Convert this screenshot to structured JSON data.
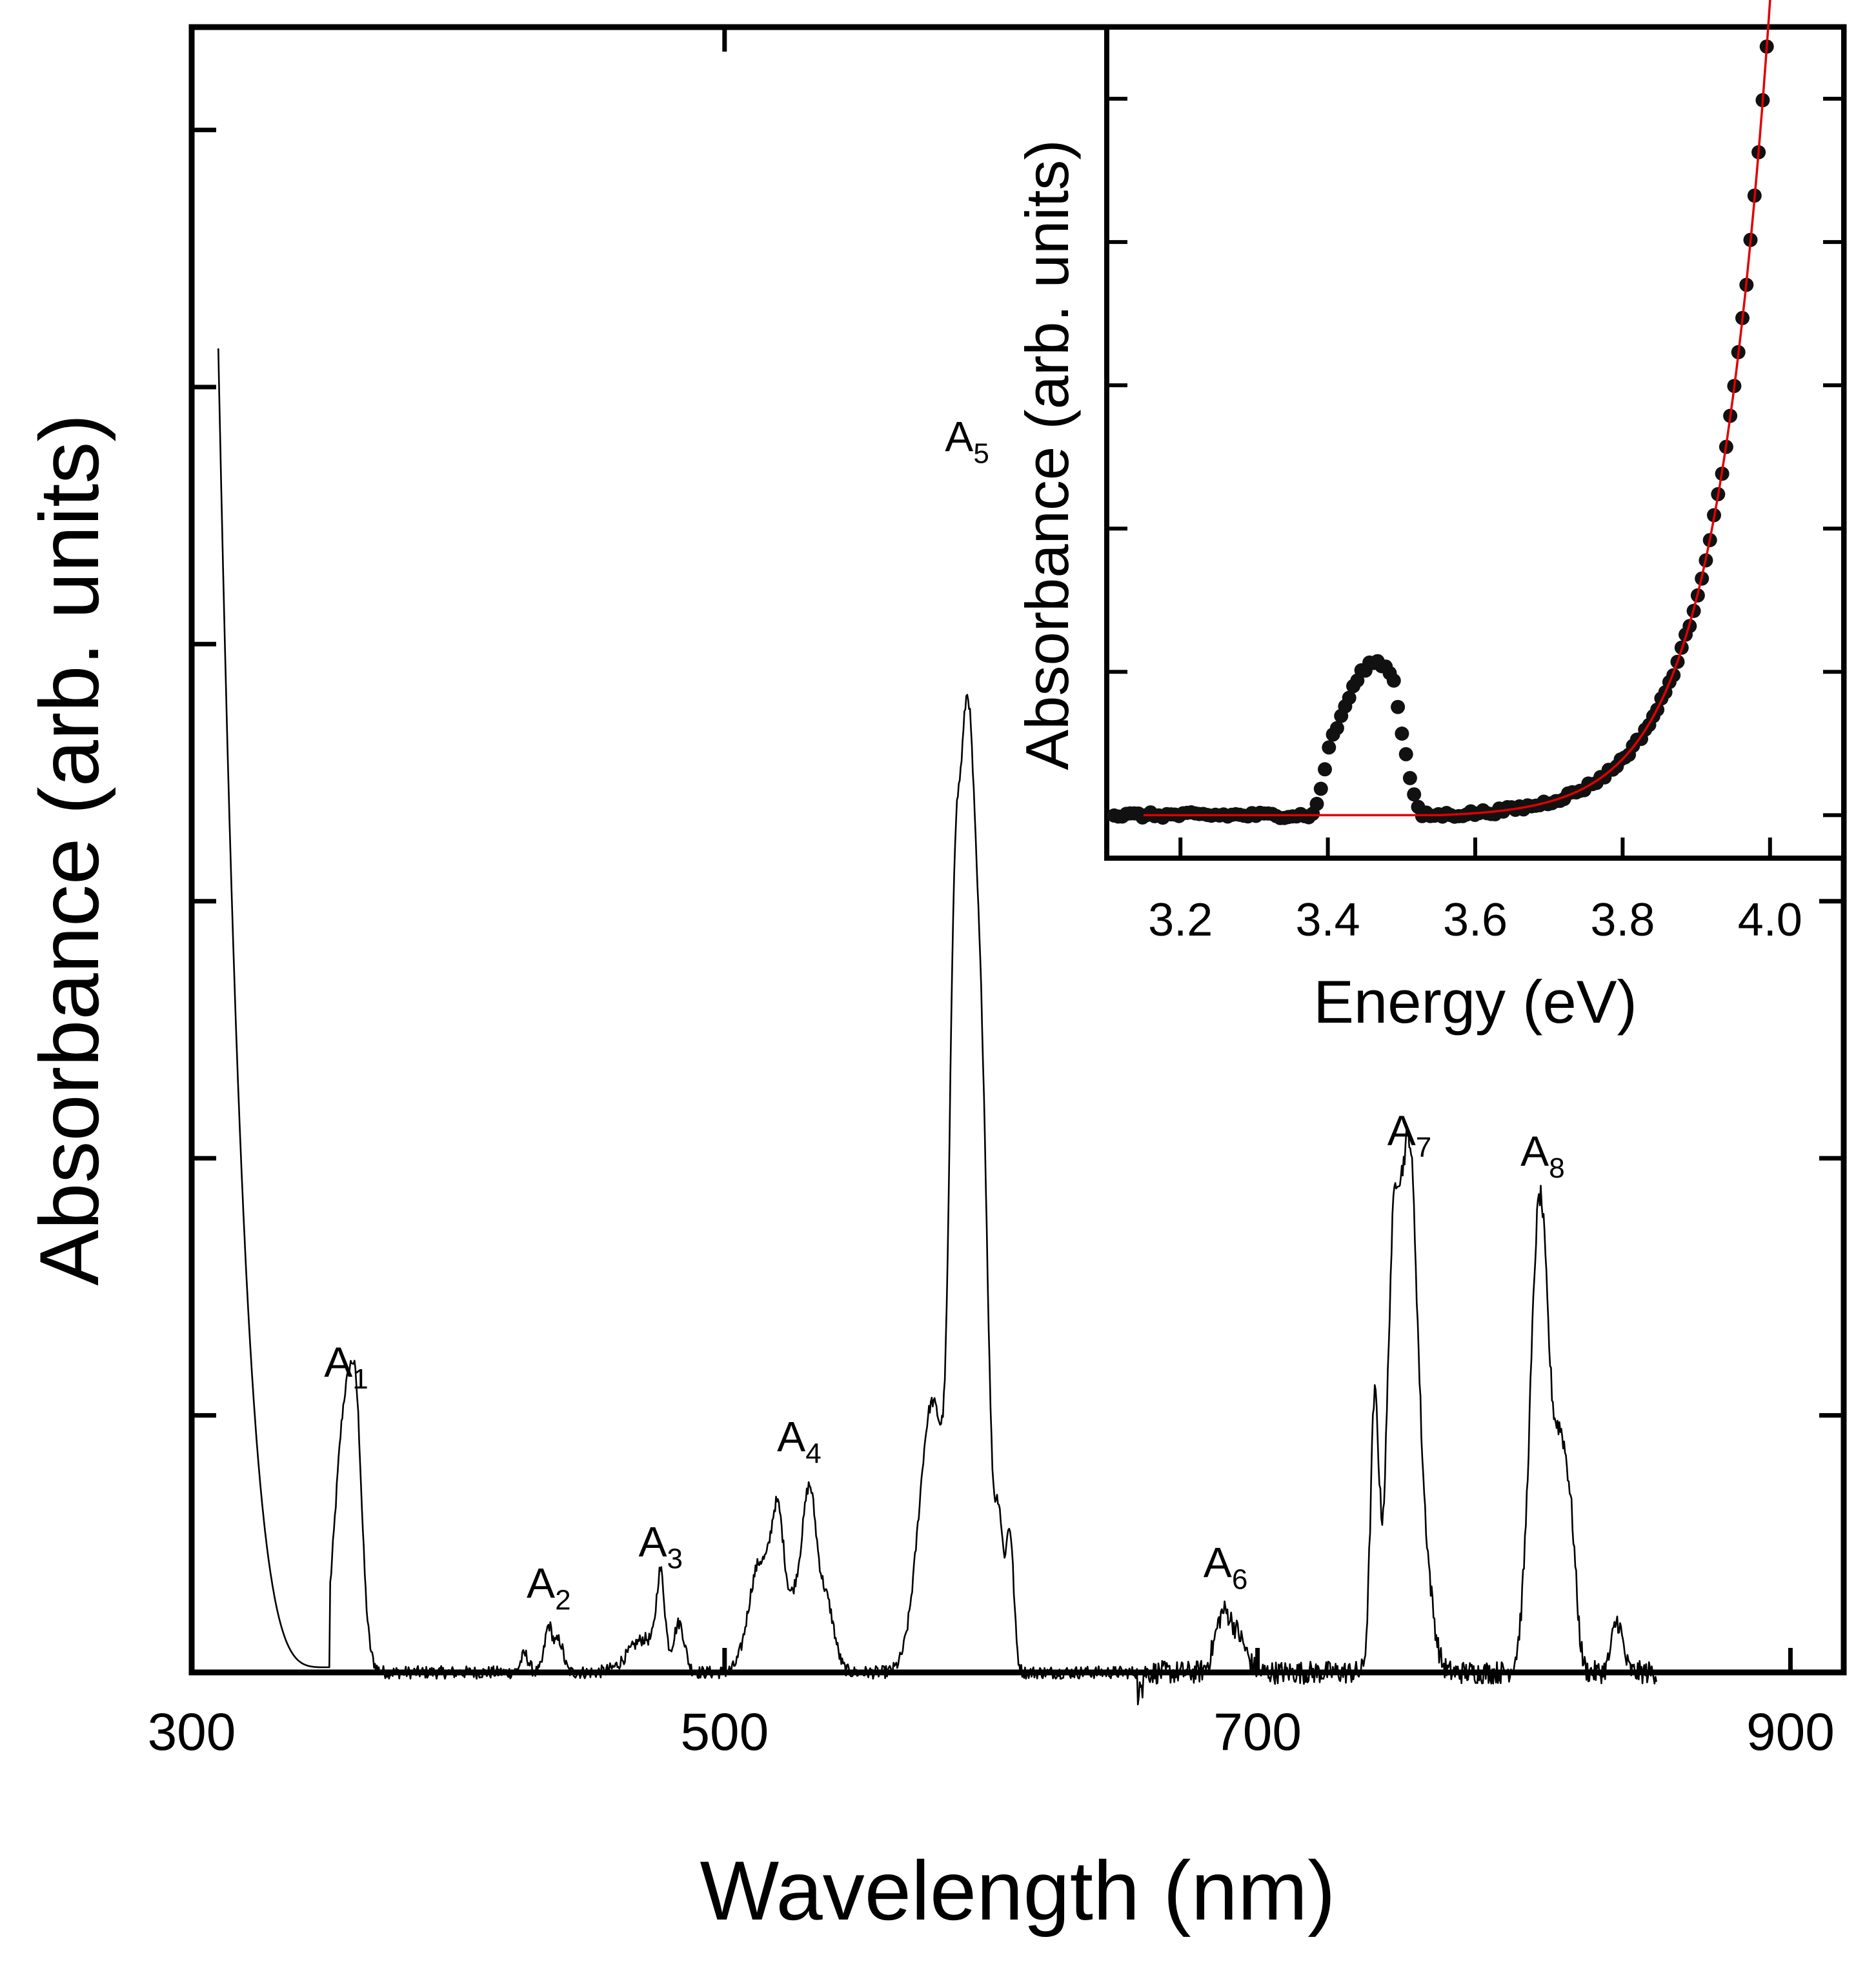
{
  "chart_data": [
    {
      "id": "main",
      "type": "line",
      "title": "",
      "xlabel": "Wavelength (nm)",
      "ylabel": "Absorbance (arb. units)",
      "xlim": [
        300,
        920
      ],
      "ylim": [
        0,
        6.4
      ],
      "x_ticks": [
        300,
        500,
        700,
        900
      ],
      "x_tick_labels": [
        "300",
        "500",
        "700",
        "900"
      ],
      "y_ticks": [
        0,
        1,
        2,
        3,
        4,
        5,
        6
      ],
      "y_tick_labels_shown": false,
      "series": [
        {
          "name": "absorbance",
          "color": "#000000",
          "baseline": 0.0,
          "x_range": [
            310,
            850
          ],
          "edge": {
            "start_x": 310,
            "start_y": 5.15,
            "end_x": 352,
            "end_y": 0.02
          },
          "peaks": [
            {
              "x": 358,
              "height": 1.06,
              "width": 4
            },
            {
              "x": 362,
              "height": 0.45,
              "width": 2
            },
            {
              "x": 425,
              "height": 0.07,
              "width": 1.5
            },
            {
              "x": 434,
              "height": 0.18,
              "width": 1.5
            },
            {
              "x": 438,
              "height": 0.12,
              "width": 1.5
            },
            {
              "x": 470,
              "height": 0.13,
              "width": 6
            },
            {
              "x": 476,
              "height": 0.32,
              "width": 1.5
            },
            {
              "x": 483,
              "height": 0.18,
              "width": 2
            },
            {
              "x": 513,
              "height": 0.42,
              "width": 4
            },
            {
              "x": 520,
              "height": 0.55,
              "width": 2.5
            },
            {
              "x": 527,
              "height": 0.28,
              "width": 3
            },
            {
              "x": 532,
              "height": 0.62,
              "width": 2.5
            },
            {
              "x": 538,
              "height": 0.28,
              "width": 3
            },
            {
              "x": 578,
              "height": 1.05,
              "width": 5
            },
            {
              "x": 586,
              "height": 1.45,
              "width": 1.8
            },
            {
              "x": 591,
              "height": 3.65,
              "width": 3.5
            },
            {
              "x": 597,
              "height": 1.55,
              "width": 2.5
            },
            {
              "x": 603,
              "height": 0.55,
              "width": 1.5
            },
            {
              "x": 607,
              "height": 0.55,
              "width": 1.5
            },
            {
              "x": 687,
              "height": 0.22,
              "width": 3
            },
            {
              "x": 693,
              "height": 0.12,
              "width": 3
            },
            {
              "x": 744,
              "height": 1.05,
              "width": 1.6
            },
            {
              "x": 751,
              "height": 1.55,
              "width": 2.5
            },
            {
              "x": 757,
              "height": 1.95,
              "width": 3
            },
            {
              "x": 763,
              "height": 0.35,
              "width": 3
            },
            {
              "x": 806,
              "height": 1.85,
              "width": 3.5
            },
            {
              "x": 814,
              "height": 0.75,
              "width": 2.5
            },
            {
              "x": 818,
              "height": 0.4,
              "width": 2
            },
            {
              "x": 835,
              "height": 0.2,
              "width": 2
            }
          ],
          "noise_amplitude": 0.025,
          "noise_amplitude_above_655": 0.045
        }
      ],
      "annotations": [
        {
          "letter": "A",
          "sub": "1",
          "x": 358,
          "y": 1.15
        },
        {
          "letter": "A",
          "sub": "2",
          "x": 434,
          "y": 0.29
        },
        {
          "letter": "A",
          "sub": "3",
          "x": 476,
          "y": 0.45
        },
        {
          "letter": "A",
          "sub": "4",
          "x": 528,
          "y": 0.86
        },
        {
          "letter": "A",
          "sub": "5",
          "x": 591,
          "y": 4.75
        },
        {
          "letter": "A",
          "sub": "6",
          "x": 688,
          "y": 0.37
        },
        {
          "letter": "A",
          "sub": "7",
          "x": 757,
          "y": 2.05
        },
        {
          "letter": "A",
          "sub": "8",
          "x": 807,
          "y": 1.97
        }
      ]
    },
    {
      "id": "inset",
      "type": "scatter",
      "title": "",
      "xlabel": "Energy (eV)",
      "ylabel": "Absorbance (arb. units)",
      "xlim": [
        3.1,
        4.1
      ],
      "ylim": [
        -0.3,
        5.5
      ],
      "x_ticks": [
        3.2,
        3.4,
        3.6,
        3.8,
        4.0
      ],
      "x_tick_labels": [
        "3.2",
        "3.4",
        "3.6",
        "3.8",
        "4.0"
      ],
      "y_ticks": [
        0,
        1,
        2,
        3,
        4,
        5
      ],
      "y_tick_labels_shown": false,
      "series": [
        {
          "name": "data",
          "style": "black-filled-markers",
          "color": "#000000",
          "x_range": [
            3.11,
            4.02
          ],
          "bump": {
            "center": 3.465,
            "height": 1.07,
            "width": 0.05,
            "start": 3.38,
            "end": 3.525
          },
          "edge": {
            "x0": 3.55,
            "amplitude": 0.015,
            "rate": 13.2
          },
          "baseline": 0.0
        },
        {
          "name": "fit",
          "style": "red-line",
          "color": "#e00000",
          "x_range": [
            3.15,
            4.02
          ],
          "edge": {
            "x0": 3.55,
            "amplitude": 0.015,
            "rate": 13.2
          }
        }
      ]
    }
  ]
}
